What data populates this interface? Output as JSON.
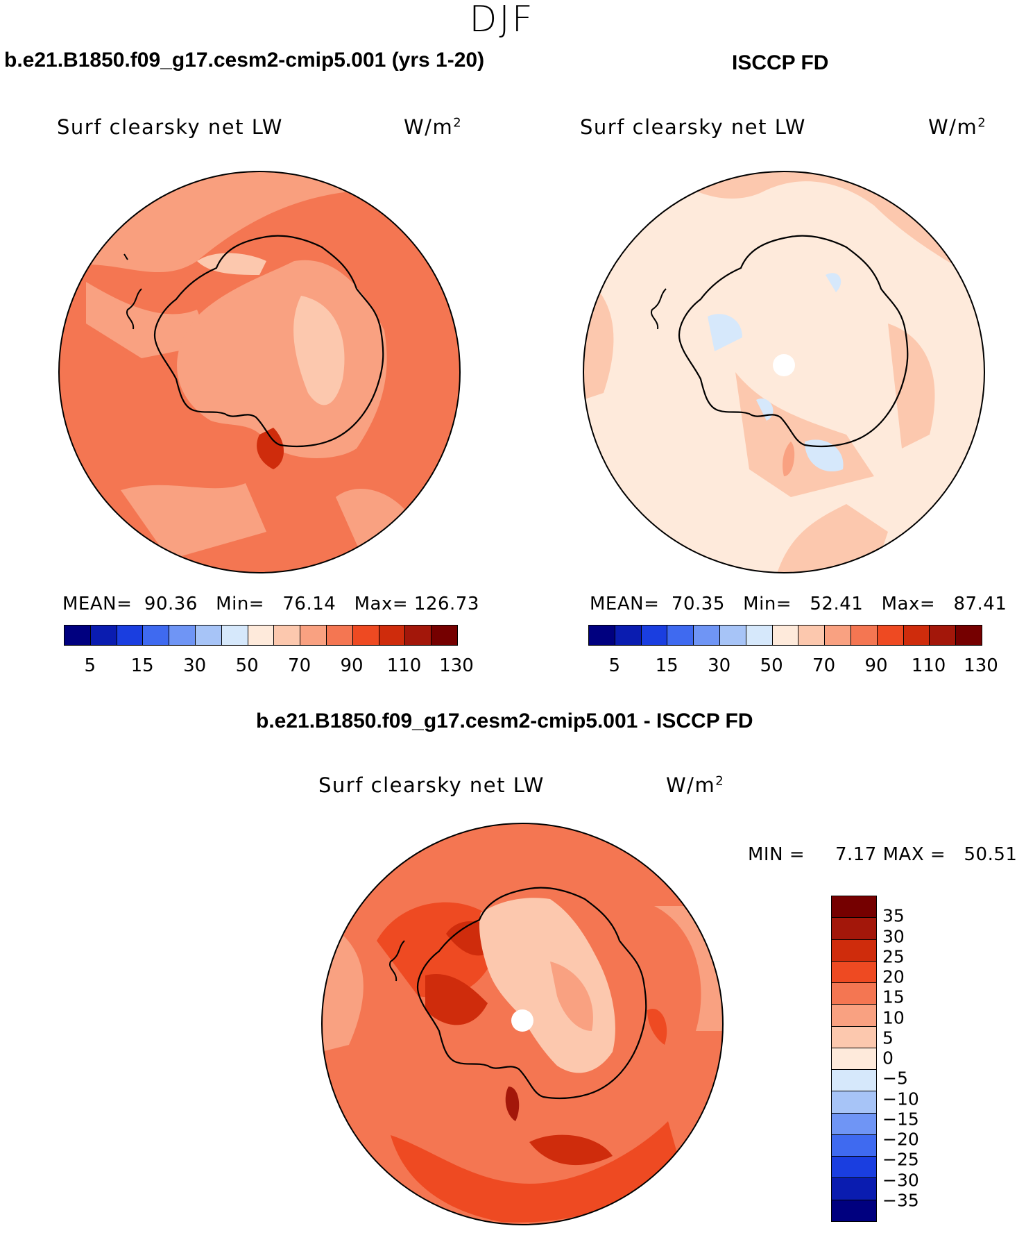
{
  "season": "DJF",
  "colors": {
    "abs_scale": [
      "#00007f",
      "#0a1cb0",
      "#1a3ee0",
      "#3f6af0",
      "#6f95f5",
      "#a7c4f7",
      "#d6e8fb",
      "#feeadb",
      "#fcc8ae",
      "#f9a181",
      "#f47652",
      "#ee4a22",
      "#cf2c0c",
      "#a3170a",
      "#750000"
    ],
    "diff_scale": [
      "#00007f",
      "#0a1cb0",
      "#1a3ee0",
      "#3f6af0",
      "#6f95f5",
      "#a7c4f7",
      "#d6e8fb",
      "#feeadb",
      "#fcc8ae",
      "#f9a181",
      "#f47652",
      "#ee4a22",
      "#cf2c0c",
      "#a3170a",
      "#750000"
    ]
  },
  "panels": {
    "model": {
      "title": "b.e21.B1850.f09_g17.cesm2-cmip5.001 (yrs 1-20)",
      "variable": "Surf clearsky net LW",
      "units": "W/m",
      "units_exp": "2",
      "mean_label": "MEAN=",
      "mean": "90.36",
      "min_label": "Min=",
      "min": "76.14",
      "max_label": "Max=",
      "max": "126.73",
      "ticks": [
        "5",
        "15",
        "30",
        "50",
        "70",
        "90",
        "110",
        "130"
      ]
    },
    "obs": {
      "title": "ISCCP FD",
      "variable": "Surf clearsky net LW",
      "units": "W/m",
      "units_exp": "2",
      "mean_label": "MEAN=",
      "mean": "70.35",
      "min_label": "Min=",
      "min": "52.41",
      "max_label": "Max=",
      "max": "87.41",
      "ticks": [
        "5",
        "15",
        "30",
        "50",
        "70",
        "90",
        "110",
        "130"
      ]
    },
    "diff": {
      "title": "b.e21.B1850.f09_g17.cesm2-cmip5.001 - ISCCP FD",
      "variable": "Surf clearsky net LW",
      "units": "W/m",
      "units_exp": "2",
      "min_label": "MIN =",
      "min": "7.17",
      "max_label": "MAX =",
      "max": "50.51",
      "ticks": [
        "35",
        "30",
        "25",
        "20",
        "15",
        "10",
        "5",
        "0",
        "−5",
        "−10",
        "−15",
        "−20",
        "−25",
        "−30",
        "−35"
      ]
    }
  }
}
